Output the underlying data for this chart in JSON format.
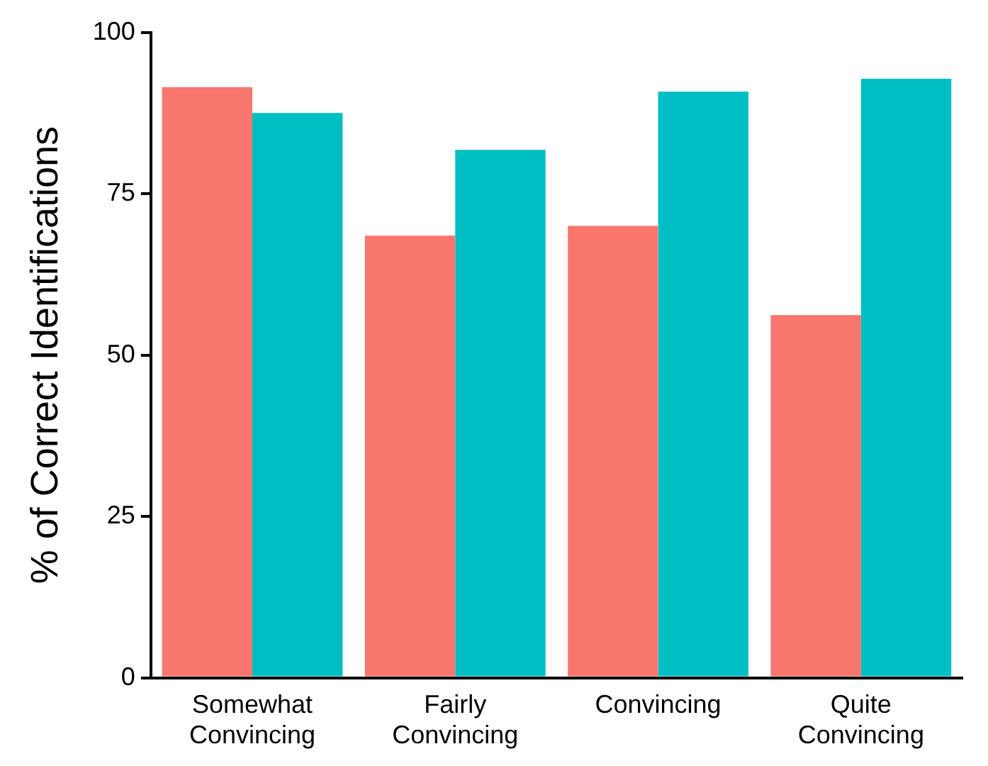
{
  "chart_data": {
    "type": "bar",
    "ylabel": "% of Correct Identifications",
    "categories": [
      "Somewhat Convincing",
      "Fairly Convincing",
      "Convincing",
      "Quite Convincing"
    ],
    "series": [
      {
        "color": "#f8766d",
        "values": [
          91.5,
          68.5,
          70,
          56.2
        ]
      },
      {
        "color": "#00bfc4",
        "values": [
          87.5,
          81.8,
          90.8,
          92.8
        ]
      }
    ],
    "ylim": [
      0,
      100
    ],
    "yticks": [
      0,
      25,
      50,
      75,
      100
    ],
    "grid": false,
    "legend": false
  }
}
